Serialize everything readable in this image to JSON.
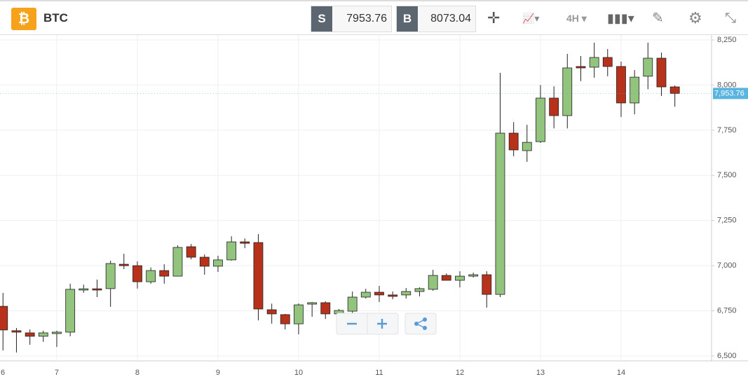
{
  "toolbar": {
    "symbol": "BTC",
    "sell_label": "S",
    "sell_price": "7953.76",
    "buy_label": "B",
    "buy_price": "8073.04",
    "interval": "4H"
  },
  "chart_data": {
    "type": "candlestick",
    "x": [
      6.333,
      6.5,
      6.667,
      6.833,
      7,
      7.167,
      7.333,
      7.5,
      7.667,
      7.833,
      8,
      8.167,
      8.333,
      8.5,
      8.667,
      8.833,
      9,
      9.167,
      9.333,
      9.5,
      9.667,
      9.833,
      10,
      10.167,
      10.333,
      10.5,
      10.667,
      10.833,
      11,
      11.167,
      11.333,
      11.5,
      11.667,
      11.833,
      12,
      12.167,
      12.333,
      12.5,
      12.667,
      12.833,
      13,
      13.167,
      13.333,
      13.5,
      13.667,
      13.833,
      14,
      14.167,
      14.333,
      14.5,
      14.667
    ],
    "open": [
      6775,
      6640,
      6628,
      6609,
      6624,
      6632,
      6865,
      6872,
      6873,
      7008,
      7000,
      6911,
      6973,
      6942,
      7105,
      7047,
      6997,
      7032,
      7132,
      7128,
      6756,
      6729,
      6678,
      6787,
      6795,
      6733,
      6748,
      6826,
      6853,
      6838,
      6838,
      6857,
      6869,
      6946,
      6919,
      6942,
      6950,
      6841,
      7734,
      7637,
      7687,
      7928,
      7831,
      8103,
      8099,
      8153,
      8103,
      7901,
      8049,
      8149,
      7990
    ],
    "high": [
      6849,
      6655,
      6647,
      6640,
      6640,
      6900,
      6895,
      6923,
      7028,
      7066,
      7024,
      6990,
      7008,
      7113,
      7120,
      7062,
      7055,
      7163,
      7151,
      7175,
      6790,
      6733,
      6791,
      6799,
      6803,
      6760,
      6857,
      6872,
      6888,
      6857,
      6876,
      6880,
      6977,
      6957,
      6969,
      6962,
      6969,
      8068,
      7795,
      7780,
      8000,
      7993,
      8173,
      8161,
      8235,
      8200,
      8130,
      8083,
      8235,
      8180,
      7998
    ],
    "low": [
      6531,
      6519,
      6562,
      6578,
      6550,
      6609,
      6850,
      6826,
      6772,
      6981,
      6873,
      6900,
      6900,
      6942,
      7035,
      6950,
      6965,
      7028,
      7097,
      6697,
      6679,
      6647,
      6620,
      6717,
      6705,
      6690,
      6737,
      6818,
      6799,
      6814,
      6818,
      6830,
      6861,
      6919,
      6880,
      6934,
      6768,
      6826,
      7606,
      7575,
      7680,
      7760,
      7760,
      8022,
      8041,
      8049,
      7823,
      7838,
      7977,
      7940,
      7880
    ],
    "close": [
      6644,
      6632,
      6609,
      6628,
      6632,
      6869,
      6872,
      6865,
      7012,
      7000,
      6911,
      6973,
      6942,
      7101,
      7047,
      6997,
      7032,
      7132,
      7124,
      6760,
      6733,
      6678,
      6783,
      6795,
      6733,
      6752,
      6826,
      6853,
      6838,
      6830,
      6857,
      6873,
      6946,
      6919,
      6942,
      6950,
      6841,
      7734,
      7641,
      7683,
      7928,
      7831,
      8095,
      8095,
      8153,
      8103,
      7901,
      8044,
      8149,
      7990,
      7953.76
    ],
    "up_color": "#92c47d",
    "down_color": "#b8311a",
    "price_line": {
      "value": 7953.76,
      "label": "7,953.76"
    },
    "xlim": [
      6.296,
      15.122
    ],
    "xticks": [
      6,
      7,
      8,
      9,
      10,
      11,
      12,
      13,
      14
    ],
    "ylim": [
      6500,
      8250
    ],
    "yticks": [
      {
        "value": 6500,
        "label": "6,500"
      },
      {
        "value": 6750,
        "label": "6,750"
      },
      {
        "value": 7000,
        "label": "7,000"
      },
      {
        "value": 7250,
        "label": "7,250"
      },
      {
        "value": 7500,
        "label": "7,500"
      },
      {
        "value": 7750,
        "label": "7,750"
      },
      {
        "value": 8000,
        "label": "8,000"
      },
      {
        "value": 8250,
        "label": "8,250"
      }
    ],
    "grid": true
  }
}
